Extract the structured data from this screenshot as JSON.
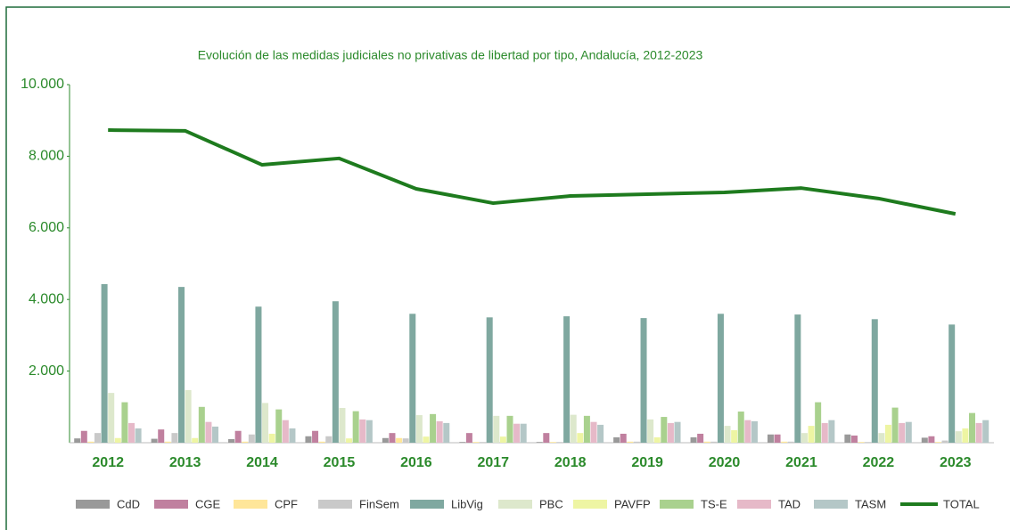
{
  "chart_data": {
    "type": "bar",
    "title": "Evolución de las medidas judiciales no privativas de libertad por tipo, Andalucía, 2012-2023",
    "categories": [
      "2012",
      "2013",
      "2014",
      "2015",
      "2016",
      "2017",
      "2018",
      "2019",
      "2020",
      "2021",
      "2022",
      "2023"
    ],
    "ylim": [
      0,
      10000
    ],
    "yticks": [
      {
        "value": 2000,
        "label": "2.000"
      },
      {
        "value": 4000,
        "label": "4.000"
      },
      {
        "value": 6000,
        "label": "6.000"
      },
      {
        "value": 8000,
        "label": "8.000"
      },
      {
        "value": 10000,
        "label": "10.000"
      }
    ],
    "legend": "bottom",
    "series": [
      {
        "name": "CdD",
        "color": "#999999",
        "values": [
          120,
          110,
          100,
          180,
          130,
          20,
          20,
          150,
          150,
          230,
          230,
          140
        ]
      },
      {
        "name": "CGE",
        "color": "#c0809f",
        "values": [
          330,
          370,
          330,
          330,
          270,
          270,
          270,
          250,
          250,
          230,
          200,
          180
        ]
      },
      {
        "name": "CPF",
        "color": "#ffe699",
        "values": [
          30,
          30,
          30,
          30,
          130,
          20,
          20,
          30,
          30,
          30,
          20,
          20
        ]
      },
      {
        "name": "FinSem",
        "color": "#c9c9c9",
        "values": [
          270,
          270,
          230,
          180,
          120,
          20,
          20,
          30,
          30,
          30,
          20,
          60
        ]
      },
      {
        "name": "LibVig",
        "color": "#7fa8a0",
        "values": [
          4430,
          4350,
          3800,
          3950,
          3600,
          3500,
          3530,
          3480,
          3600,
          3580,
          3450,
          3300
        ]
      },
      {
        "name": "PBC",
        "color": "#dde8cc",
        "values": [
          1390,
          1470,
          1110,
          970,
          770,
          750,
          780,
          650,
          470,
          270,
          270,
          320
        ]
      },
      {
        "name": "PAVFP",
        "color": "#eef5a3",
        "values": [
          130,
          130,
          250,
          120,
          170,
          170,
          270,
          150,
          350,
          470,
          500,
          400
        ]
      },
      {
        "name": "TS-E",
        "color": "#a9d18e",
        "values": [
          1130,
          1000,
          930,
          880,
          800,
          750,
          750,
          720,
          870,
          1130,
          980,
          830
        ]
      },
      {
        "name": "TAD",
        "color": "#e6b9c8",
        "values": [
          550,
          580,
          630,
          650,
          600,
          530,
          580,
          550,
          630,
          550,
          550,
          550
        ]
      },
      {
        "name": "TASM",
        "color": "#b4c7c7",
        "values": [
          400,
          450,
          400,
          630,
          550,
          530,
          500,
          580,
          600,
          630,
          580,
          630
        ]
      },
      {
        "name": "TOTAL",
        "type": "line",
        "color": "#1e7b1e",
        "values": [
          8730,
          8710,
          7760,
          7940,
          7090,
          6690,
          6890,
          6940,
          6990,
          7110,
          6820,
          6390
        ]
      }
    ]
  }
}
